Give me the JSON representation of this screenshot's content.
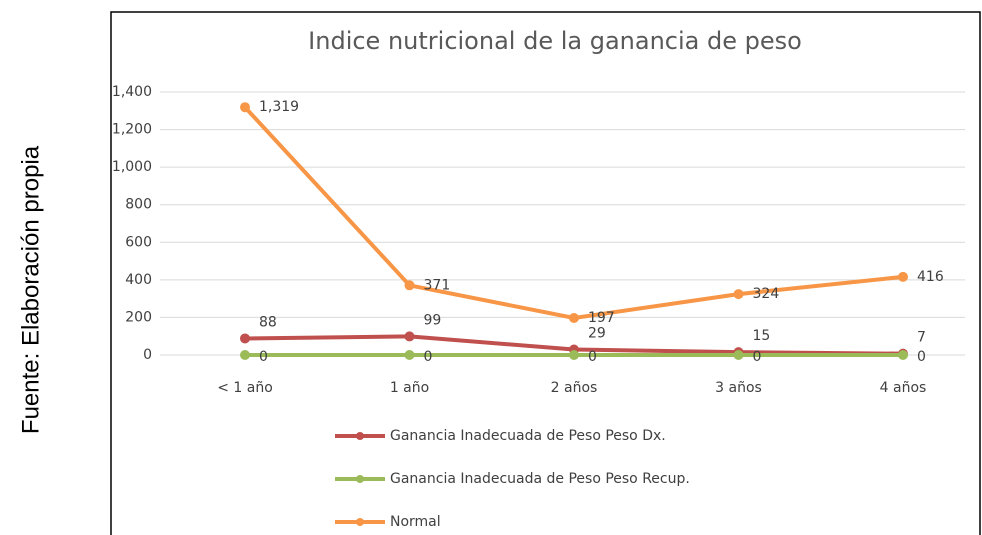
{
  "source": "Fuente: Elaboración propia",
  "chart_data": {
    "type": "line",
    "title": "Indice nutricional de la ganancia de peso",
    "categories": [
      "< 1 año",
      "1 año",
      "2 años",
      "3 años",
      "4 años"
    ],
    "series": [
      {
        "name": "Ganancia Inadecuada de Peso Peso Dx.",
        "color": "#c0504d",
        "values": [
          88,
          99,
          29,
          15,
          7
        ]
      },
      {
        "name": "Ganancia Inadecuada de Peso Peso Recup.",
        "color": "#9bbb59",
        "values": [
          0,
          0,
          0,
          0,
          0
        ]
      },
      {
        "name": "Normal",
        "color": "#f79646",
        "values": [
          1319,
          371,
          197,
          324,
          416
        ],
        "value_labels": [
          "1,319",
          "371",
          "197",
          "324",
          "416"
        ]
      }
    ],
    "ylim": [
      0,
      1400
    ],
    "yticks": [
      0,
      200,
      400,
      600,
      800,
      {
        "value": 1000,
        "label": "1,000"
      },
      {
        "value": 1200,
        "label": "1,200"
      },
      {
        "value": 1400,
        "label": "1,400"
      }
    ],
    "grid": true,
    "legend": "bottom"
  }
}
